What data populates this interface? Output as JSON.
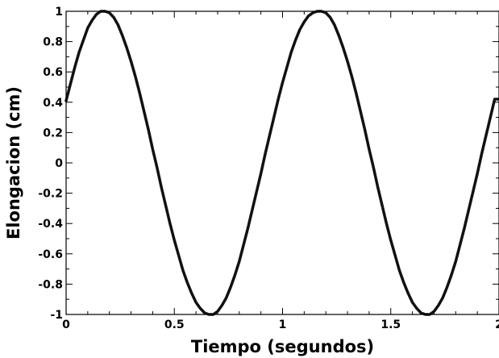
{
  "chart_data": {
    "type": "line",
    "title": "",
    "xlabel": "Tiempo (segundos)",
    "ylabel": "Elongacion (cm)",
    "xlim": [
      0,
      2
    ],
    "ylim": [
      -1,
      1
    ],
    "x_ticks": [
      0,
      0.5,
      1,
      1.5,
      2
    ],
    "x_tick_labels": [
      "0",
      "0.5",
      "1",
      "1.5",
      "2"
    ],
    "y_ticks": [
      -1,
      -0.8,
      -0.6,
      -0.4,
      -0.2,
      0,
      0.2,
      0.4,
      0.6,
      0.8,
      1
    ],
    "y_tick_labels": [
      "-1",
      "-0.8",
      "-0.6",
      "-0.4",
      "-0.2",
      "0",
      "0.2",
      "0.4",
      "0.6",
      "0.8",
      "1"
    ],
    "grid": false,
    "legend": "none",
    "series": [
      {
        "color": "#111111",
        "points": [
          [
            0.0,
            0.41
          ],
          [
            0.02,
            0.52
          ],
          [
            0.04,
            0.63
          ],
          [
            0.06,
            0.73
          ],
          [
            0.08,
            0.81
          ],
          [
            0.1,
            0.89
          ],
          [
            0.12,
            0.94
          ],
          [
            0.14,
            0.98
          ],
          [
            0.16,
            1.0
          ],
          [
            0.18,
            1.0
          ],
          [
            0.2,
            0.99
          ],
          [
            0.22,
            0.96
          ],
          [
            0.24,
            0.91
          ],
          [
            0.26,
            0.84
          ],
          [
            0.28,
            0.76
          ],
          [
            0.3,
            0.67
          ],
          [
            0.32,
            0.57
          ],
          [
            0.34,
            0.46
          ],
          [
            0.36,
            0.34
          ],
          [
            0.38,
            0.22
          ],
          [
            0.4,
            0.09
          ],
          [
            0.42,
            -0.03
          ],
          [
            0.44,
            -0.16
          ],
          [
            0.46,
            -0.28
          ],
          [
            0.48,
            -0.4
          ],
          [
            0.5,
            -0.51
          ],
          [
            0.52,
            -0.61
          ],
          [
            0.54,
            -0.71
          ],
          [
            0.56,
            -0.79
          ],
          [
            0.58,
            -0.86
          ],
          [
            0.6,
            -0.92
          ],
          [
            0.62,
            -0.96
          ],
          [
            0.64,
            -0.99
          ],
          [
            0.66,
            -1.0
          ],
          [
            0.68,
            -1.0
          ],
          [
            0.7,
            -0.98
          ],
          [
            0.72,
            -0.94
          ],
          [
            0.74,
            -0.89
          ],
          [
            0.76,
            -0.82
          ],
          [
            0.78,
            -0.74
          ],
          [
            0.8,
            -0.65
          ],
          [
            0.82,
            -0.54
          ],
          [
            0.84,
            -0.43
          ],
          [
            0.86,
            -0.31
          ],
          [
            0.88,
            -0.19
          ],
          [
            0.9,
            -0.07
          ],
          [
            0.92,
            0.06
          ],
          [
            0.94,
            0.18
          ],
          [
            0.96,
            0.3
          ],
          [
            0.98,
            0.42
          ],
          [
            1.0,
            0.53
          ],
          [
            1.02,
            0.63
          ],
          [
            1.04,
            0.73
          ],
          [
            1.06,
            0.81
          ],
          [
            1.08,
            0.88
          ],
          [
            1.1,
            0.93
          ],
          [
            1.12,
            0.97
          ],
          [
            1.14,
            0.99
          ],
          [
            1.16,
            1.0
          ],
          [
            1.18,
            1.0
          ],
          [
            1.2,
            0.99
          ],
          [
            1.22,
            0.96
          ],
          [
            1.24,
            0.91
          ],
          [
            1.26,
            0.84
          ],
          [
            1.28,
            0.76
          ],
          [
            1.3,
            0.67
          ],
          [
            1.32,
            0.57
          ],
          [
            1.34,
            0.46
          ],
          [
            1.36,
            0.34
          ],
          [
            1.38,
            0.22
          ],
          [
            1.4,
            0.09
          ],
          [
            1.42,
            -0.03
          ],
          [
            1.44,
            -0.16
          ],
          [
            1.46,
            -0.28
          ],
          [
            1.48,
            -0.4
          ],
          [
            1.5,
            -0.51
          ],
          [
            1.52,
            -0.61
          ],
          [
            1.54,
            -0.71
          ],
          [
            1.56,
            -0.79
          ],
          [
            1.58,
            -0.86
          ],
          [
            1.6,
            -0.92
          ],
          [
            1.62,
            -0.96
          ],
          [
            1.64,
            -0.99
          ],
          [
            1.66,
            -1.0
          ],
          [
            1.68,
            -1.0
          ],
          [
            1.7,
            -0.98
          ],
          [
            1.72,
            -0.94
          ],
          [
            1.74,
            -0.89
          ],
          [
            1.76,
            -0.82
          ],
          [
            1.78,
            -0.74
          ],
          [
            1.8,
            -0.65
          ],
          [
            1.82,
            -0.54
          ],
          [
            1.84,
            -0.43
          ],
          [
            1.86,
            -0.31
          ],
          [
            1.88,
            -0.19
          ],
          [
            1.9,
            -0.07
          ],
          [
            1.92,
            0.06
          ],
          [
            1.94,
            0.18
          ],
          [
            1.96,
            0.3
          ],
          [
            1.98,
            0.42
          ],
          [
            2.0,
            0.42
          ]
        ]
      }
    ]
  }
}
